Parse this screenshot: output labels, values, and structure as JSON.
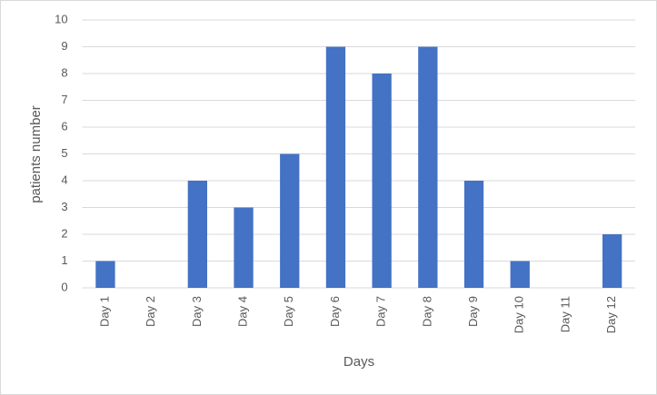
{
  "chart_data": {
    "type": "bar",
    "categories": [
      "Day 1",
      "Day 2",
      "Day 3",
      "Day 4",
      "Day 5",
      "Day 6",
      "Day 7",
      "Day 8",
      "Day 9",
      "Day 10",
      "Day 11",
      "Day 12"
    ],
    "values": [
      1,
      0,
      4,
      3,
      5,
      9,
      8,
      9,
      4,
      1,
      0,
      2
    ],
    "color": "#4472c4",
    "x_label": "Days",
    "y_label": "patients number",
    "ylim": [
      0,
      10
    ],
    "yticks": [
      0,
      1,
      2,
      3,
      4,
      5,
      6,
      7,
      8,
      9,
      10
    ],
    "grid": true
  }
}
